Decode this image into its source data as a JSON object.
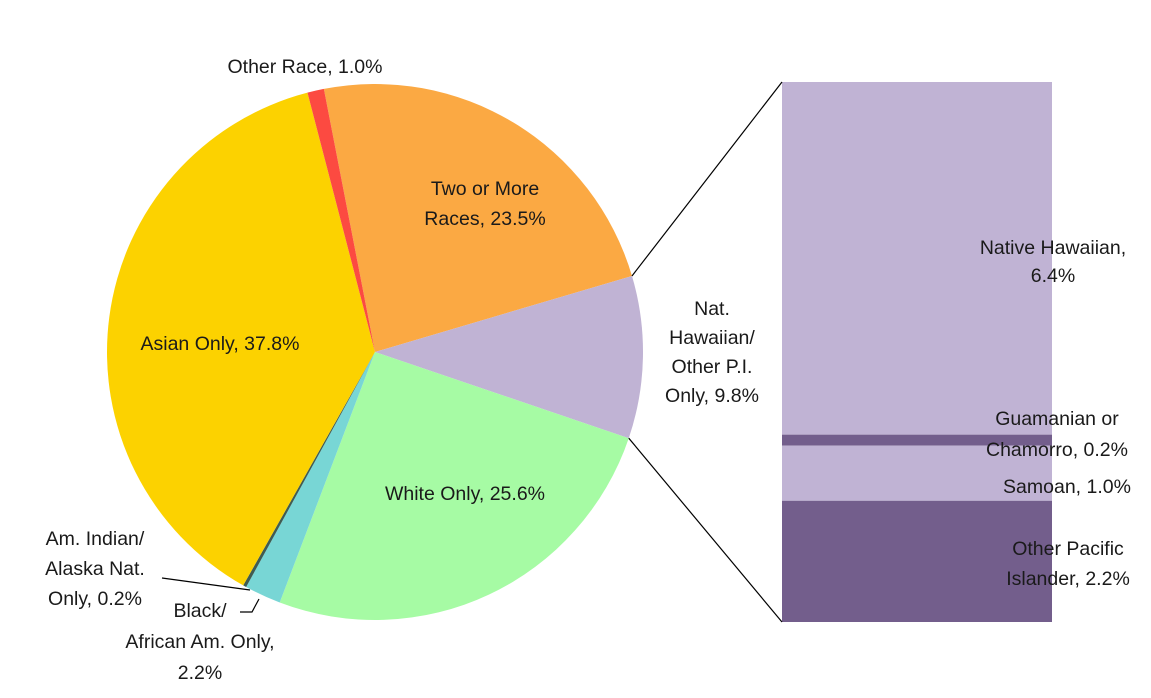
{
  "chart_data": {
    "type": "pie-of-bar",
    "slices": [
      {
        "label": [
          "Two or More",
          "Races, 23.5%"
        ],
        "value": 23.5,
        "color": "#fba943"
      },
      {
        "label": [
          "Nat.",
          "Hawaiian/",
          "Other P.I.",
          "Only, 9.8%"
        ],
        "value": 9.8,
        "color": "#c0b3d4"
      },
      {
        "label": [
          "White Only, 25.6%"
        ],
        "value": 25.6,
        "color": "#a6fba4"
      },
      {
        "label": [
          "Black/",
          "African Am. Only,",
          "2.2%"
        ],
        "value": 2.2,
        "color": "#78d6d5"
      },
      {
        "label": [
          "Am. Indian/",
          "Alaska Nat.",
          "Only, 0.2%"
        ],
        "value": 0.2,
        "color": "#3f5c52"
      },
      {
        "label": [
          "Asian Only, 37.8%"
        ],
        "value": 37.8,
        "color": "#fcd200"
      },
      {
        "label": [
          "Other Race, 1.0%"
        ],
        "value": 1.0,
        "color": "#fc4a41"
      }
    ],
    "breakdown_of": 1,
    "bar": [
      {
        "label": [
          "Native Hawaiian,",
          "6.4%"
        ],
        "value": 6.4,
        "color": "#c0b3d4"
      },
      {
        "label": [
          "Guamanian or",
          "Chamorro, 0.2%"
        ],
        "value": 0.2,
        "color": "#735e8c"
      },
      {
        "label": [
          "Samoan, 1.0%"
        ],
        "value": 1.0,
        "color": "#c0b3d4"
      },
      {
        "label": [
          "Other Pacific",
          "Islander, 2.2%"
        ],
        "value": 2.2,
        "color": "#735e8c"
      }
    ]
  }
}
